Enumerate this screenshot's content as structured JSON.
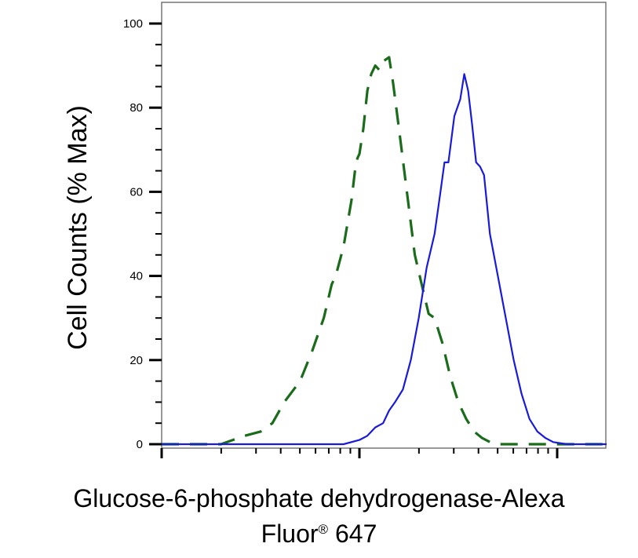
{
  "chart_data": {
    "type": "line",
    "ylabel": "Cell Counts (% Max)",
    "xlabel_line1": "Glucose-6-phosphate dehydrogenase-Alexa",
    "xlabel_line2_prefix": "Fluor",
    "xlabel_line2_mark": "®",
    "xlabel_line2_suffix": " 647",
    "ylim": [
      0,
      105
    ],
    "y_ticks": [
      "0",
      "20",
      "40",
      "60",
      "80",
      "100"
    ],
    "x_scale": "log",
    "x_decades": 2.25,
    "x_major_ticks": [
      0,
      1,
      2
    ],
    "x_tick_labels_shown": false,
    "grid": false,
    "legend": "none",
    "series": [
      {
        "style": "dashed",
        "color": "#1a6b1a",
        "points": [
          [
            0,
            0
          ],
          [
            0.22,
            0
          ],
          [
            0.3,
            0
          ],
          [
            0.36,
            1
          ],
          [
            0.42,
            2
          ],
          [
            0.5,
            3
          ],
          [
            0.56,
            5
          ],
          [
            0.62,
            10
          ],
          [
            0.7,
            15
          ],
          [
            0.76,
            22
          ],
          [
            0.82,
            30
          ],
          [
            0.86,
            38
          ],
          [
            0.88,
            40
          ],
          [
            0.92,
            47
          ],
          [
            0.96,
            58
          ],
          [
            0.98,
            66
          ],
          [
            0.99,
            68
          ],
          [
            1.0,
            69
          ],
          [
            1.02,
            75
          ],
          [
            1.04,
            84
          ],
          [
            1.06,
            88
          ],
          [
            1.08,
            90
          ],
          [
            1.1,
            89
          ],
          [
            1.12,
            91
          ],
          [
            1.15,
            92
          ],
          [
            1.17,
            86
          ],
          [
            1.2,
            75
          ],
          [
            1.24,
            60
          ],
          [
            1.28,
            45
          ],
          [
            1.32,
            37
          ],
          [
            1.35,
            31
          ],
          [
            1.38,
            30
          ],
          [
            1.42,
            24
          ],
          [
            1.46,
            16
          ],
          [
            1.5,
            10
          ],
          [
            1.54,
            6
          ],
          [
            1.58,
            3
          ],
          [
            1.62,
            1.5
          ],
          [
            1.66,
            0.5
          ],
          [
            1.7,
            0
          ],
          [
            2.25,
            0
          ]
        ]
      },
      {
        "style": "solid",
        "color": "#1a1adb",
        "points": [
          [
            0,
            0
          ],
          [
            0.8,
            0
          ],
          [
            0.92,
            0
          ],
          [
            1.0,
            1
          ],
          [
            1.04,
            2
          ],
          [
            1.08,
            4
          ],
          [
            1.12,
            5
          ],
          [
            1.15,
            8
          ],
          [
            1.18,
            10
          ],
          [
            1.22,
            13
          ],
          [
            1.26,
            20
          ],
          [
            1.3,
            30
          ],
          [
            1.34,
            42
          ],
          [
            1.38,
            50
          ],
          [
            1.41,
            60
          ],
          [
            1.43,
            67
          ],
          [
            1.45,
            67
          ],
          [
            1.48,
            78
          ],
          [
            1.51,
            82
          ],
          [
            1.53,
            88
          ],
          [
            1.55,
            84
          ],
          [
            1.57,
            76
          ],
          [
            1.59,
            67
          ],
          [
            1.61,
            66
          ],
          [
            1.63,
            64
          ],
          [
            1.66,
            50
          ],
          [
            1.7,
            40
          ],
          [
            1.74,
            30
          ],
          [
            1.78,
            20
          ],
          [
            1.82,
            12
          ],
          [
            1.86,
            6
          ],
          [
            1.9,
            3
          ],
          [
            1.94,
            1.5
          ],
          [
            1.98,
            0.5
          ],
          [
            2.05,
            0
          ],
          [
            2.25,
            0
          ]
        ]
      }
    ]
  }
}
